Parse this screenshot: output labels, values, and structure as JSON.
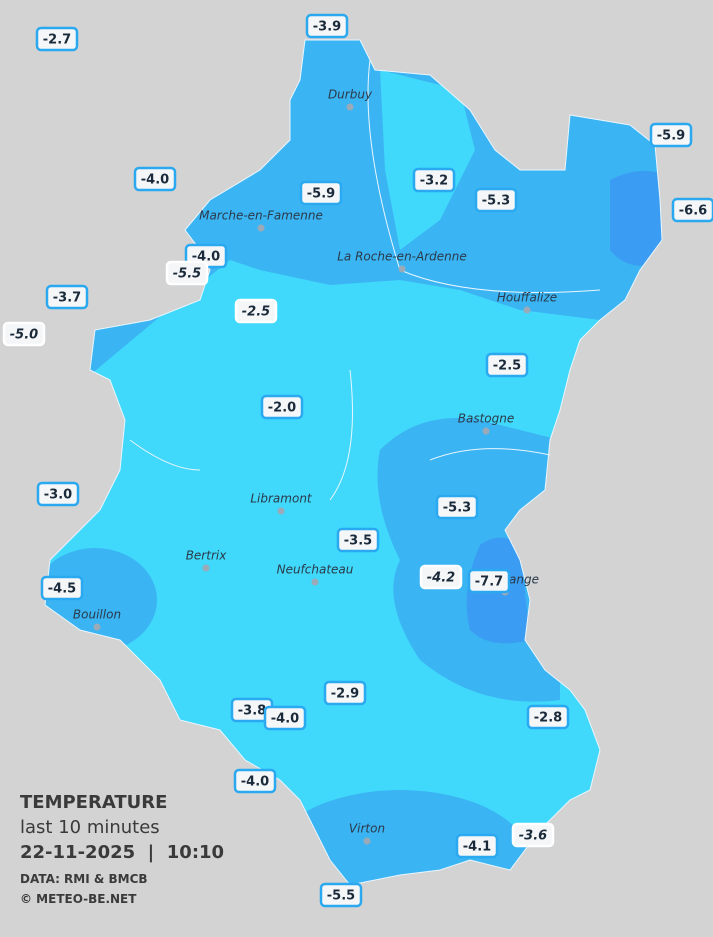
{
  "legend": {
    "title": "TEMPERATURE",
    "subtitle": "last 10 minutes",
    "datetime": "22-11-2025  |  10:10",
    "source": "DATA: RMI & BMCB",
    "credit": "© METEO-BE.NET"
  },
  "stations": [
    "-2.7",
    "-3.9",
    "-5.9",
    "-4.0",
    "-3.2",
    "-5.9",
    "-5.3",
    "-6.6",
    "-4.0",
    "-5.5",
    "-3.7",
    "-5.0",
    "-2.5",
    "-2.5",
    "-2.0",
    "-3.0",
    "-5.3",
    "-3.5",
    "-4.2",
    "-7.7",
    "-4.5",
    "-2.9",
    "-3.8",
    "-4.0",
    "-2.8",
    "-4.0",
    "-4.1",
    "-3.6",
    "-5.5"
  ],
  "towns": [
    "Durbuy",
    "Marche-en-Famenne",
    "La Roche-en-Ardenne",
    "Houffalize",
    "Bastogne",
    "Libramont",
    "Bertrix",
    "Neufchateau",
    "Bouillon",
    "Virton",
    "Martelange"
  ]
}
